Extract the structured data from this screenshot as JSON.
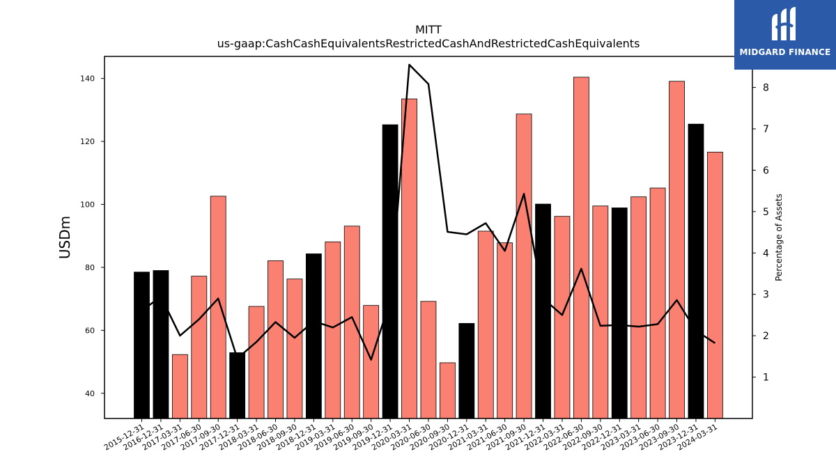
{
  "chart_data": {
    "type": "bar",
    "title": "MITT",
    "subtitle": "us-gaap:CashCashEquivalentsRestrictedCashAndRestrictedCashEquivalents",
    "ylabel": "USDm",
    "y2label": "Percentage of Assets",
    "ylim": [
      32,
      147
    ],
    "y2lim": [
      0,
      8.75
    ],
    "yticks": [
      40,
      60,
      80,
      100,
      120,
      140
    ],
    "y2ticks": [
      1,
      2,
      3,
      4,
      5,
      6,
      7,
      8
    ],
    "categories": [
      "2015-12-31",
      "2016-12-31",
      "2017-03-31",
      "2017-06-30",
      "2017-09-30",
      "2017-12-31",
      "2018-03-31",
      "2018-06-30",
      "2018-09-30",
      "2018-12-31",
      "2019-03-31",
      "2019-06-30",
      "2019-09-30",
      "2019-12-31",
      "2020-03-31",
      "2020-06-30",
      "2020-09-30",
      "2020-12-31",
      "2021-03-31",
      "2021-06-30",
      "2021-09-30",
      "2021-12-31",
      "2022-03-31",
      "2022-06-30",
      "2022-09-30",
      "2022-12-31",
      "2023-03-31",
      "2023-06-30",
      "2023-09-30",
      "2023-12-31",
      "2024-03-31"
    ],
    "series": [
      {
        "type": "bar",
        "values": [
          78.5,
          79.0,
          52.3,
          77.2,
          102.6,
          52.9,
          67.6,
          82.1,
          76.3,
          84.3,
          88.1,
          93.1,
          67.9,
          125.3,
          133.5,
          69.2,
          49.7,
          62.2,
          91.5,
          87.8,
          128.7,
          100.1,
          96.2,
          140.4,
          99.5,
          98.9,
          102.4,
          105.2,
          139.1,
          125.5,
          116.6
        ],
        "colors": [
          "#000000",
          "#000000",
          "#fa8072",
          "#fa8072",
          "#fa8072",
          "#000000",
          "#fa8072",
          "#fa8072",
          "#fa8072",
          "#000000",
          "#fa8072",
          "#fa8072",
          "#fa8072",
          "#000000",
          "#fa8072",
          "#fa8072",
          "#fa8072",
          "#000000",
          "#fa8072",
          "#fa8072",
          "#fa8072",
          "#000000",
          "#fa8072",
          "#fa8072",
          "#fa8072",
          "#000000",
          "#fa8072",
          "#fa8072",
          "#fa8072",
          "#000000",
          "#fa8072"
        ]
      },
      {
        "type": "line",
        "axis": "right",
        "color": "#000000",
        "values": [
          2.6,
          2.95,
          2.0,
          2.4,
          2.9,
          1.45,
          1.85,
          2.33,
          1.95,
          2.35,
          2.2,
          2.45,
          1.42,
          2.85,
          8.55,
          8.08,
          4.51,
          4.45,
          4.72,
          4.05,
          5.43,
          2.9,
          2.5,
          3.62,
          2.24,
          2.26,
          2.22,
          2.28,
          2.86,
          2.12,
          1.82
        ]
      }
    ],
    "grid": false
  },
  "logo": {
    "text": "MIDGARD FINANCE"
  }
}
